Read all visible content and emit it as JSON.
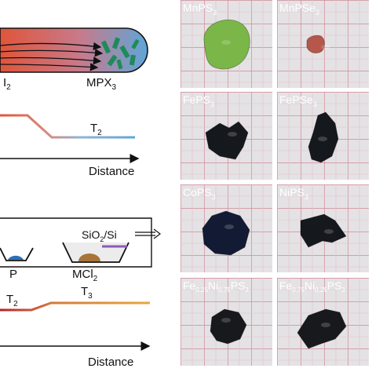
{
  "diagram_top": {
    "precursor_label": "I",
    "precursor_sub": "2",
    "product_label": "MPX",
    "product_sub": "3",
    "temp_label": "T",
    "temp_sub": "2",
    "axis_label": "Distance",
    "colors": {
      "hot": "#e0553a",
      "cool": "#5fa6d8",
      "crystal": "#1f8a5a"
    }
  },
  "diagram_bottom": {
    "substrate_label": "SiO",
    "substrate_sub": "2",
    "substrate_suffix": "/Si",
    "boat_left_label": "P",
    "boat_right_label": "MCl",
    "boat_right_sub": "2",
    "temp_left_label": "T",
    "temp_left_sub": "2",
    "temp_right_label": "T",
    "temp_right_sub": "3",
    "axis_label": "Distance",
    "colors": {
      "hot": "#b81e2b",
      "warm": "#e09a3c",
      "boat_left": "#2e6fb5",
      "boat_right": "#a8743a",
      "substrate": "#8a5cb8"
    }
  },
  "tiles": [
    {
      "name": "mnps3",
      "label": "MnPS",
      "sub": "3",
      "color": "#7ab648"
    },
    {
      "name": "mnpse3",
      "label": "MnPSe",
      "sub": "3",
      "color": "#b5574b"
    },
    {
      "name": "feps3",
      "label": "FePS",
      "sub": "3",
      "color": "#15181c"
    },
    {
      "name": "fepse3",
      "label": "FePSe",
      "sub": "3",
      "color": "#15181c"
    },
    {
      "name": "cops3",
      "label": "CoPS",
      "sub": "3",
      "color": "#131a33"
    },
    {
      "name": "nips3",
      "label": "NiPS",
      "sub": "3",
      "color": "#15181c"
    },
    {
      "name": "fe025ni075",
      "parts": [
        [
          "Fe",
          ""
        ],
        [
          "0.25",
          "s"
        ],
        [
          "Ni",
          ""
        ],
        [
          "0.75",
          "s"
        ],
        [
          "PS",
          ""
        ],
        [
          "3",
          "s"
        ]
      ],
      "color": "#18191c"
    },
    {
      "name": "fe075ni025",
      "parts": [
        [
          "Fe",
          ""
        ],
        [
          "0.75",
          "s"
        ],
        [
          "Ni",
          ""
        ],
        [
          "0.25",
          "s"
        ],
        [
          "PS",
          ""
        ],
        [
          "3",
          "s"
        ]
      ],
      "color": "#18191c"
    }
  ]
}
